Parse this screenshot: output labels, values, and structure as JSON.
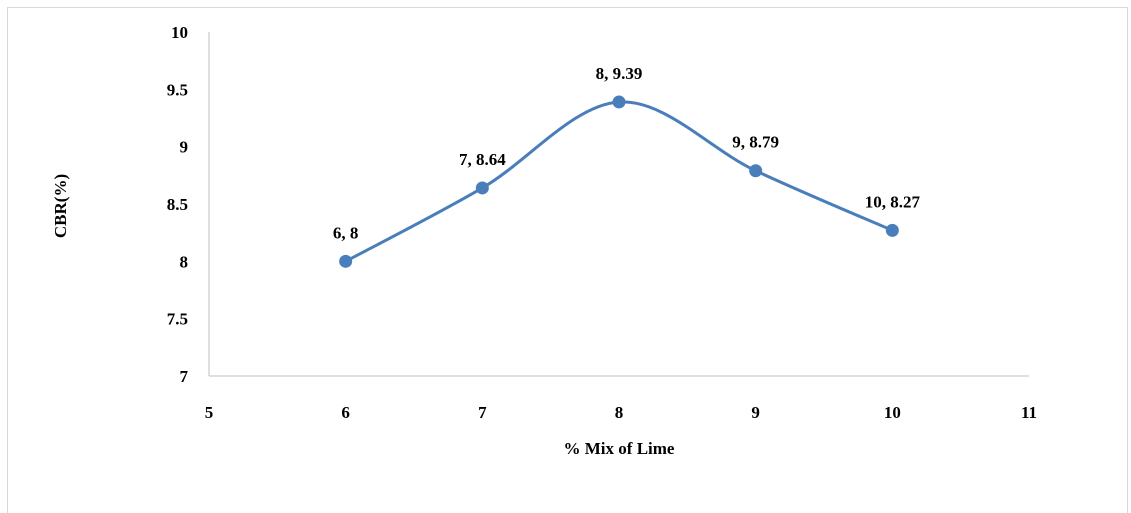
{
  "chart_data": {
    "type": "scatter",
    "xlabel": "% Mix of Lime",
    "ylabel": "CBR(%)",
    "xlim": [
      5,
      11
    ],
    "ylim": [
      7,
      10
    ],
    "xticks": [
      5,
      6,
      7,
      8,
      9,
      10,
      11
    ],
    "yticks": [
      7,
      7.5,
      8,
      8.5,
      9,
      9.5,
      10
    ],
    "xtick_labels": [
      "5",
      "6",
      "7",
      "8",
      "9",
      "10",
      "11"
    ],
    "ytick_labels": [
      "7",
      "7.5",
      "8",
      "8.5",
      "9",
      "9.5",
      "10"
    ],
    "grid": false,
    "smooth_line": true,
    "series": [
      {
        "x": [
          6,
          7,
          8,
          9,
          10
        ],
        "y": [
          8,
          8.64,
          9.39,
          8.79,
          8.27
        ],
        "labels": [
          "6, 8",
          "7, 8.64",
          "8, 9.39",
          "9, 8.79",
          "10, 8.27"
        ],
        "color": "#4a7ebb"
      }
    ]
  }
}
